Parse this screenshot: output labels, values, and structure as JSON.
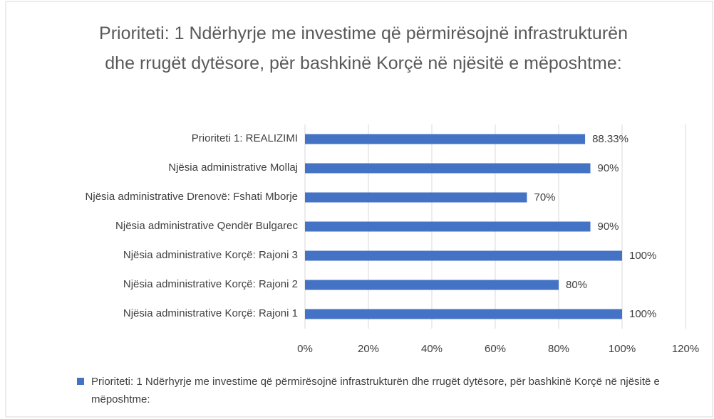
{
  "chart_data": {
    "type": "bar",
    "orientation": "horizontal",
    "title": "Prioriteti: 1 Ndërhyrje me investime që përmirësojnë infrastrukturën dhe rrugët dytësore, për bashkinë Korçë në njësitë e mëposhtme:",
    "categories": [
      "Prioriteti 1: REALIZIMI",
      "Njësia administrative Mollaj",
      "Njësia administrative Drenovë: Fshati Mborje",
      "Njësia administrative Qendër Bulgarec",
      "Njësia administrative Korçë: Rajoni 3",
      "Njësia administrative Korçë: Rajoni 2",
      "Njësia administrative Korçë: Rajoni 1"
    ],
    "series": [
      {
        "name": "Prioriteti: 1 Ndërhyrje me investime që përmirësojnë infrastrukturën dhe rrugët dytësore, për bashkinë Korçë në njësitë e mëposhtme:",
        "color": "#4472c4",
        "values": [
          88.33,
          90,
          70,
          90,
          100,
          80,
          100
        ],
        "value_labels": [
          "88.33%",
          "90%",
          "70%",
          "90%",
          "100%",
          "80%",
          "100%"
        ]
      }
    ],
    "xlim": [
      0,
      120
    ],
    "xticks": [
      {
        "value": 0,
        "label": "0%"
      },
      {
        "value": 20,
        "label": "20%"
      },
      {
        "value": 40,
        "label": "40%"
      },
      {
        "value": 60,
        "label": "60%"
      },
      {
        "value": 80,
        "label": "80%"
      },
      {
        "value": 100,
        "label": "100%"
      },
      {
        "value": 120,
        "label": "120%"
      }
    ],
    "grid": true,
    "legend": "bottom"
  }
}
